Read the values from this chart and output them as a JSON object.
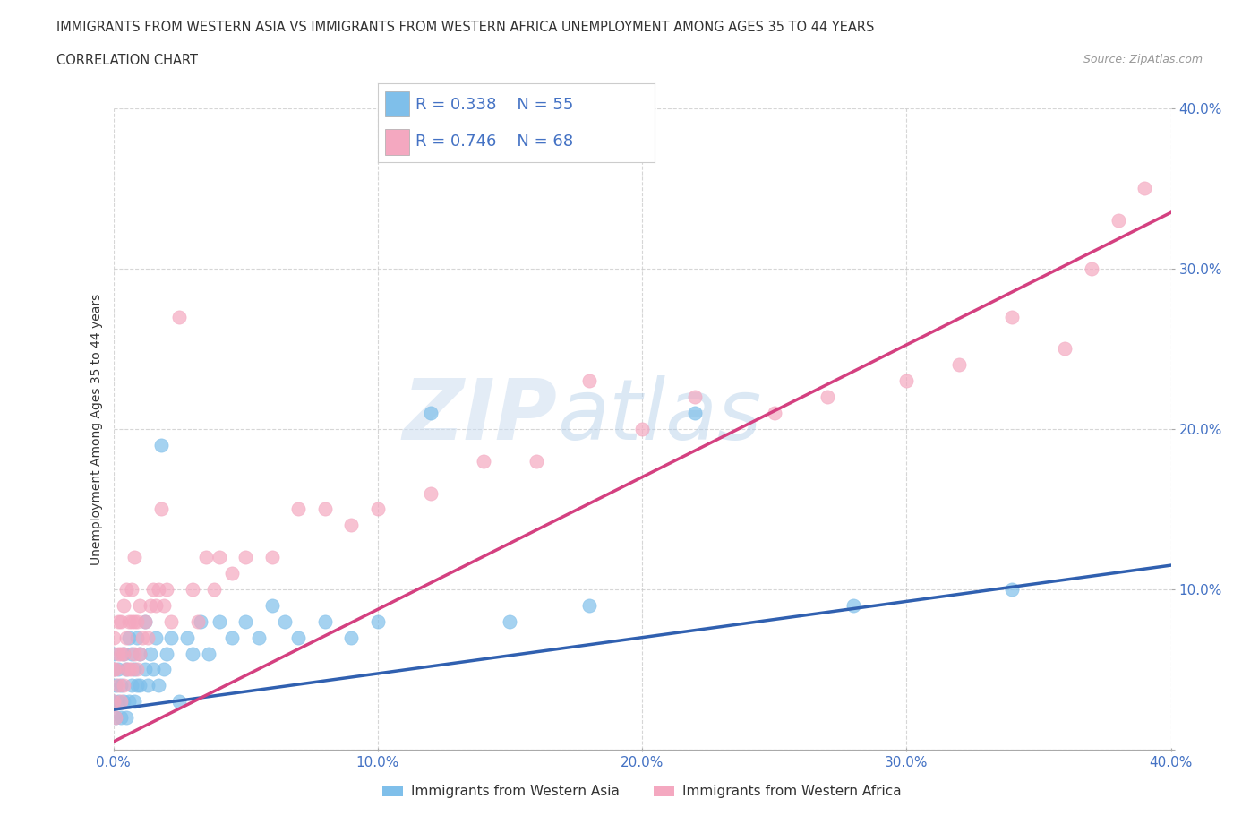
{
  "title_line1": "IMMIGRANTS FROM WESTERN ASIA VS IMMIGRANTS FROM WESTERN AFRICA UNEMPLOYMENT AMONG AGES 35 TO 44 YEARS",
  "title_line2": "CORRELATION CHART",
  "source": "Source: ZipAtlas.com",
  "ylabel": "Unemployment Among Ages 35 to 44 years",
  "xlim": [
    0.0,
    0.4
  ],
  "ylim": [
    0.0,
    0.4
  ],
  "xticks": [
    0.0,
    0.1,
    0.2,
    0.3,
    0.4
  ],
  "yticks": [
    0.0,
    0.1,
    0.2,
    0.3,
    0.4
  ],
  "xticklabels": [
    "0.0%",
    "10.0%",
    "20.0%",
    "30.0%",
    "40.0%"
  ],
  "yticklabels": [
    "",
    "10.0%",
    "20.0%",
    "30.0%",
    "40.0%"
  ],
  "blue_color": "#7fbfea",
  "pink_color": "#f4a8c0",
  "blue_line_color": "#3060b0",
  "pink_line_color": "#d44080",
  "watermark_big": "ZIP",
  "watermark_small": "atlas",
  "legend_R_blue": "R = 0.338",
  "legend_N_blue": "N = 55",
  "legend_R_pink": "R = 0.746",
  "legend_N_pink": "N = 68",
  "legend_label_blue": "Immigrants from Western Asia",
  "legend_label_pink": "Immigrants from Western Africa",
  "blue_line_x0": 0.0,
  "blue_line_x1": 0.4,
  "blue_line_y0": 0.025,
  "blue_line_y1": 0.115,
  "pink_line_x0": 0.0,
  "pink_line_x1": 0.4,
  "pink_line_y0": 0.005,
  "pink_line_y1": 0.335,
  "blue_scatter_x": [
    0.0,
    0.0,
    0.0,
    0.001,
    0.001,
    0.002,
    0.002,
    0.003,
    0.003,
    0.004,
    0.004,
    0.005,
    0.005,
    0.006,
    0.006,
    0.007,
    0.007,
    0.008,
    0.008,
    0.009,
    0.009,
    0.01,
    0.01,
    0.012,
    0.012,
    0.013,
    0.014,
    0.015,
    0.016,
    0.017,
    0.018,
    0.019,
    0.02,
    0.022,
    0.025,
    0.028,
    0.03,
    0.033,
    0.036,
    0.04,
    0.045,
    0.05,
    0.055,
    0.06,
    0.065,
    0.07,
    0.08,
    0.09,
    0.1,
    0.12,
    0.15,
    0.18,
    0.22,
    0.28,
    0.34
  ],
  "blue_scatter_y": [
    0.03,
    0.05,
    0.06,
    0.02,
    0.04,
    0.03,
    0.05,
    0.02,
    0.04,
    0.03,
    0.06,
    0.02,
    0.05,
    0.03,
    0.07,
    0.04,
    0.06,
    0.03,
    0.05,
    0.04,
    0.07,
    0.04,
    0.06,
    0.05,
    0.08,
    0.04,
    0.06,
    0.05,
    0.07,
    0.04,
    0.19,
    0.05,
    0.06,
    0.07,
    0.03,
    0.07,
    0.06,
    0.08,
    0.06,
    0.08,
    0.07,
    0.08,
    0.07,
    0.09,
    0.08,
    0.07,
    0.08,
    0.07,
    0.08,
    0.21,
    0.08,
    0.09,
    0.21,
    0.09,
    0.1
  ],
  "pink_scatter_x": [
    0.0,
    0.0,
    0.0,
    0.001,
    0.001,
    0.002,
    0.002,
    0.002,
    0.003,
    0.003,
    0.003,
    0.004,
    0.004,
    0.004,
    0.005,
    0.005,
    0.005,
    0.006,
    0.006,
    0.007,
    0.007,
    0.007,
    0.008,
    0.008,
    0.008,
    0.009,
    0.009,
    0.01,
    0.01,
    0.011,
    0.012,
    0.013,
    0.014,
    0.015,
    0.016,
    0.017,
    0.018,
    0.019,
    0.02,
    0.022,
    0.025,
    0.03,
    0.032,
    0.035,
    0.038,
    0.04,
    0.045,
    0.05,
    0.06,
    0.07,
    0.08,
    0.09,
    0.1,
    0.12,
    0.14,
    0.16,
    0.18,
    0.2,
    0.22,
    0.25,
    0.27,
    0.3,
    0.32,
    0.34,
    0.36,
    0.37,
    0.38,
    0.39
  ],
  "pink_scatter_y": [
    0.03,
    0.05,
    0.07,
    0.02,
    0.05,
    0.04,
    0.06,
    0.08,
    0.03,
    0.06,
    0.08,
    0.04,
    0.06,
    0.09,
    0.05,
    0.07,
    0.1,
    0.05,
    0.08,
    0.05,
    0.08,
    0.1,
    0.06,
    0.08,
    0.12,
    0.05,
    0.08,
    0.06,
    0.09,
    0.07,
    0.08,
    0.07,
    0.09,
    0.1,
    0.09,
    0.1,
    0.15,
    0.09,
    0.1,
    0.08,
    0.27,
    0.1,
    0.08,
    0.12,
    0.1,
    0.12,
    0.11,
    0.12,
    0.12,
    0.15,
    0.15,
    0.14,
    0.15,
    0.16,
    0.18,
    0.18,
    0.23,
    0.2,
    0.22,
    0.21,
    0.22,
    0.23,
    0.24,
    0.27,
    0.25,
    0.3,
    0.33,
    0.35
  ],
  "grid_color": "#cccccc",
  "background_color": "#ffffff",
  "title_color": "#333333",
  "tick_color": "#4472c4",
  "legend_text_color": "#4472c4"
}
